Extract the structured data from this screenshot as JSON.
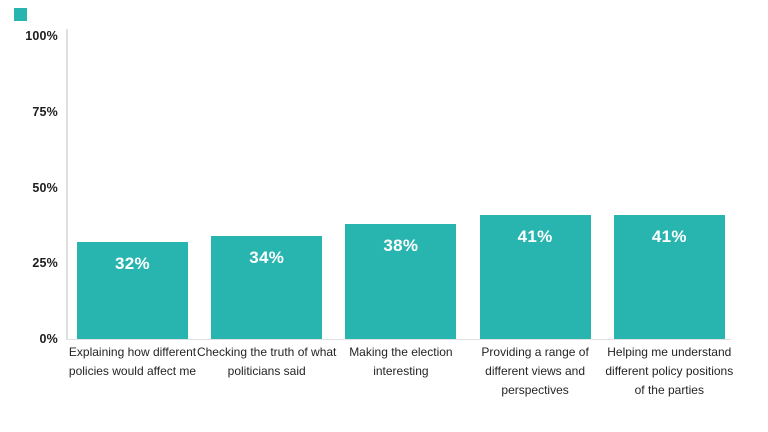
{
  "legend_swatch": {
    "color": "#28b5b0"
  },
  "chart_data": {
    "type": "bar",
    "title": "",
    "xlabel": "",
    "ylabel": "",
    "ylim": [
      0,
      100
    ],
    "grid": false,
    "legend_position": "top-left-swatch-only",
    "categories": [
      [
        "Explaining how different",
        "policies would affect me"
      ],
      [
        "Checking the truth of what",
        "politicians said"
      ],
      [
        "Making the election",
        "interesting"
      ],
      [
        "Providing a range of",
        "different views and",
        "perspectives"
      ],
      [
        "Helping me understand",
        "different policy positions",
        "of the parties"
      ]
    ],
    "values": [
      32,
      34,
      38,
      41,
      41
    ],
    "bar_labels": [
      "32%",
      "34%",
      "38%",
      "41%",
      "41%"
    ],
    "yticks": [
      {
        "value": 0,
        "label": "0%"
      },
      {
        "value": 25,
        "label": "25%"
      },
      {
        "value": 50,
        "label": "50%"
      },
      {
        "value": 75,
        "label": "75%"
      },
      {
        "value": 100,
        "label": "100%"
      }
    ],
    "bar_color": "#28b5b0",
    "value_label_color": "#ffffff",
    "axis_line_color": "#e0e0e0",
    "tick_label_color": "#1d1d1d",
    "category_label_color": "#242424"
  }
}
